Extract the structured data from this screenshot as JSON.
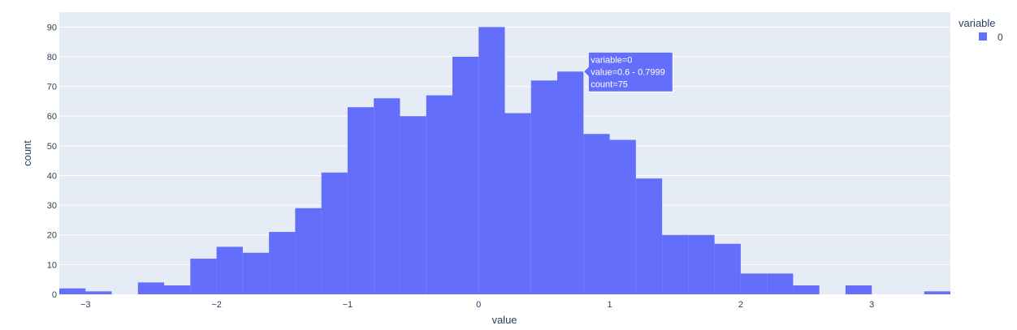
{
  "chart_data": {
    "type": "bar",
    "subtype": "histogram",
    "xlabel": "value",
    "ylabel": "count",
    "xlim": [
      -3.2,
      3.6
    ],
    "ylim": [
      0,
      95
    ],
    "xticks": [
      -3,
      -2,
      -1,
      0,
      1,
      2,
      3
    ],
    "xtick_labels": [
      "−3",
      "−2",
      "−1",
      "0",
      "1",
      "2",
      "3"
    ],
    "yticks": [
      0,
      10,
      20,
      30,
      40,
      50,
      60,
      70,
      80,
      90
    ],
    "ytick_labels": [
      "0",
      "10",
      "20",
      "30",
      "40",
      "50",
      "60",
      "70",
      "80",
      "90"
    ],
    "grid": true,
    "plot_background": "#e5ecf6",
    "bin_width": 0.2,
    "legend": {
      "title": "variable",
      "position": "top-right",
      "entries": [
        {
          "label": "0",
          "color": "#636efa"
        }
      ]
    },
    "series": [
      {
        "name": "0",
        "color": "#636efa",
        "bin_starts": [
          -3.2,
          -3.0,
          -2.8,
          -2.6,
          -2.4,
          -2.2,
          -2.0,
          -1.8,
          -1.6,
          -1.4,
          -1.2,
          -1.0,
          -0.8,
          -0.6,
          -0.4,
          -0.2,
          0.0,
          0.2,
          0.4,
          0.6,
          0.8,
          1.0,
          1.2,
          1.4,
          1.6,
          1.8,
          2.0,
          2.2,
          2.4,
          2.6,
          2.8,
          3.0,
          3.2,
          3.4
        ],
        "counts": [
          2,
          1,
          0,
          4,
          3,
          12,
          16,
          14,
          21,
          29,
          41,
          63,
          66,
          60,
          67,
          80,
          90,
          61,
          72,
          75,
          54,
          52,
          39,
          20,
          20,
          17,
          7,
          7,
          3,
          0,
          3,
          0,
          0,
          1
        ]
      }
    ],
    "hover": {
      "bin_index": 19,
      "lines": [
        "variable=0",
        "value=0.6 - 0.7999",
        "count=75"
      ],
      "background": "#636efa"
    }
  }
}
